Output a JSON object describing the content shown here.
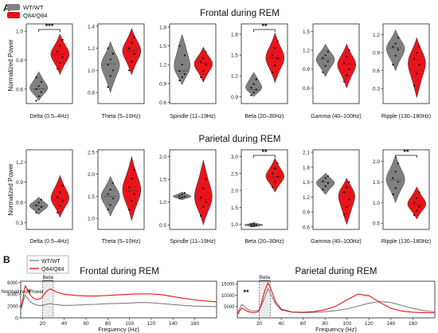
{
  "figure": {
    "panel_labels": [
      "A",
      "B"
    ],
    "legend": [
      {
        "label": "WT/WT",
        "color": "#808080"
      },
      {
        "label": "Q84/Q84",
        "color": "#e8141b"
      }
    ],
    "section_titles": [
      "Frontal during REM",
      "Parietal during REM"
    ],
    "ylabel_violin": "Normalized Power",
    "colors": {
      "wt": "#808080",
      "q84": "#e8141b"
    }
  },
  "chart_data": [
    {
      "type": "violin",
      "section": "Frontal during REM",
      "ylabel": "Normalized Power",
      "series": [
        "WT/WT",
        "Q84/Q84"
      ],
      "panels": [
        {
          "xlabel": "Delta (0.5–4Hz)",
          "ylim": [
            0.5,
            1.05
          ],
          "ticks": [
            "0.6",
            "0.8",
            "1.0"
          ],
          "tick_values": [
            0.6,
            0.8,
            1.0
          ],
          "wt": {
            "lo": 0.52,
            "hi": 0.72,
            "median": 0.6,
            "points": [
              0.52,
              0.55,
              0.58,
              0.6,
              0.62,
              0.65,
              0.68
            ]
          },
          "q84": {
            "lo": 0.7,
            "hi": 0.98,
            "median": 0.84,
            "points": [
              0.74,
              0.78,
              0.82,
              0.86,
              0.9,
              0.94
            ]
          },
          "sig": "***"
        },
        {
          "xlabel": "Theta (5–10Hz)",
          "ylim": [
            0.7,
            1.42
          ],
          "ticks": [
            "0.8",
            "1.0",
            "1.2",
            "1.4"
          ],
          "tick_values": [
            0.8,
            1.0,
            1.2,
            1.4
          ],
          "wt": {
            "lo": 0.8,
            "hi": 1.26,
            "median": 1.06,
            "points": [
              0.85,
              0.95,
              1.0,
              1.05,
              1.1,
              1.15,
              1.2
            ]
          },
          "q84": {
            "lo": 0.96,
            "hi": 1.38,
            "median": 1.18,
            "points": [
              1.0,
              1.08,
              1.15,
              1.2,
              1.25,
              1.3
            ]
          },
          "sig": ""
        },
        {
          "xlabel": "Spindle (11–19Hz)",
          "ylim": [
            0.58,
            1.85
          ],
          "ticks": [
            "0.6",
            "0.9",
            "1.2",
            "1.5",
            "1.8"
          ],
          "tick_values": [
            0.6,
            0.9,
            1.2,
            1.5,
            1.8
          ],
          "wt": {
            "lo": 0.88,
            "hi": 1.68,
            "median": 1.1,
            "points": [
              0.95,
              1.0,
              1.05,
              1.1,
              1.2,
              1.35,
              1.5
            ]
          },
          "q84": {
            "lo": 0.92,
            "hi": 1.48,
            "median": 1.22,
            "points": [
              1.0,
              1.1,
              1.2,
              1.25,
              1.3,
              1.4
            ]
          },
          "sig": ""
        },
        {
          "xlabel": "Beta (20–30Hz)",
          "ylim": [
            0.8,
            1.95
          ],
          "ticks": [
            "0.9",
            "1.2",
            "1.5",
            "1.8"
          ],
          "tick_values": [
            0.9,
            1.2,
            1.5,
            1.8
          ],
          "wt": {
            "lo": 0.9,
            "hi": 1.25,
            "median": 1.0,
            "points": [
              0.92,
              0.96,
              1.0,
              1.03,
              1.08,
              1.15
            ]
          },
          "q84": {
            "lo": 1.1,
            "hi": 1.82,
            "median": 1.46,
            "points": [
              1.25,
              1.35,
              1.45,
              1.5,
              1.6,
              1.7
            ]
          },
          "sig": "**"
        },
        {
          "xlabel": "Gamma (40–100Hz)",
          "ylim": [
            0.35,
            1.62
          ],
          "ticks": [
            "0.6",
            "0.9",
            "1.2",
            "1.5"
          ],
          "tick_values": [
            0.6,
            0.9,
            1.2,
            1.5
          ],
          "wt": {
            "lo": 0.78,
            "hi": 1.3,
            "median": 1.06,
            "points": [
              0.85,
              0.95,
              1.02,
              1.08,
              1.12,
              1.18
            ]
          },
          "q84": {
            "lo": 0.6,
            "hi": 1.3,
            "median": 0.98,
            "points": [
              0.7,
              0.8,
              0.9,
              1.0,
              1.1,
              1.2
            ]
          },
          "sig": ""
        },
        {
          "xlabel": "Ripple (130–180Hz)",
          "ylim": [
            0.05,
            1.38
          ],
          "ticks": [
            "0.3",
            "0.6",
            "0.9",
            "1.2"
          ],
          "tick_values": [
            0.3,
            0.6,
            0.9,
            1.2
          ],
          "wt": {
            "lo": 0.6,
            "hi": 1.28,
            "median": 0.98,
            "points": [
              0.7,
              0.85,
              0.95,
              1.0,
              1.05,
              1.15
            ]
          },
          "q84": {
            "lo": 0.15,
            "hi": 1.15,
            "median": 0.78,
            "points": [
              0.35,
              0.55,
              0.7,
              0.8,
              0.9,
              1.0
            ]
          },
          "sig": ""
        }
      ]
    },
    {
      "type": "violin",
      "section": "Parietal during REM",
      "ylabel": "Normalized Power",
      "series": [
        "WT/WT",
        "Q84/Q84"
      ],
      "panels": [
        {
          "xlabel": "Delta (0.5–4Hz)",
          "ylim": [
            0.2,
            1.38
          ],
          "ticks": [
            "0.3",
            "0.6",
            "0.9",
            "1.2"
          ],
          "tick_values": [
            0.3,
            0.6,
            0.9,
            1.2
          ],
          "wt": {
            "lo": 0.42,
            "hi": 0.68,
            "median": 0.55,
            "points": [
              0.45,
              0.5,
              0.53,
              0.56,
              0.6,
              0.64
            ]
          },
          "q84": {
            "lo": 0.38,
            "hi": 1.0,
            "median": 0.65,
            "points": [
              0.45,
              0.55,
              0.62,
              0.68,
              0.75,
              0.85
            ]
          },
          "sig": ""
        },
        {
          "xlabel": "Theta (5–10Hz)",
          "ylim": [
            0.75,
            2.55
          ],
          "ticks": [
            "1.0",
            "1.5",
            "2.0",
            "2.5"
          ],
          "tick_values": [
            1.0,
            1.5,
            2.0,
            2.5
          ],
          "wt": {
            "lo": 1.05,
            "hi": 1.95,
            "median": 1.5,
            "points": [
              1.2,
              1.3,
              1.45,
              1.55,
              1.65,
              1.8
            ]
          },
          "q84": {
            "lo": 0.95,
            "hi": 2.4,
            "median": 1.62,
            "points": [
              1.2,
              1.4,
              1.55,
              1.7,
              1.9,
              2.1
            ]
          },
          "sig": ""
        },
        {
          "xlabel": "Spindle (11–19Hz)",
          "ylim": [
            0.4,
            2.15
          ],
          "ticks": [
            "0.5",
            "1.0",
            "1.5",
            "2.0"
          ],
          "tick_values": [
            0.5,
            1.0,
            1.5,
            2.0
          ],
          "wt": {
            "lo": 1.05,
            "hi": 1.22,
            "median": 1.12,
            "points": [
              1.08,
              1.1,
              1.12,
              1.14,
              1.17,
              1.2
            ]
          },
          "q84": {
            "lo": 0.5,
            "hi": 1.92,
            "median": 1.05,
            "points": [
              0.7,
              0.9,
              1.0,
              1.1,
              1.3,
              1.5
            ]
          },
          "sig": ""
        },
        {
          "xlabel": "Beta (20–30Hz)",
          "ylim": [
            0.85,
            3.2
          ],
          "ticks": [
            "1.0",
            "1.5",
            "2.0",
            "2.5",
            "3.0"
          ],
          "tick_values": [
            1.0,
            1.5,
            2.0,
            2.5,
            3.0
          ],
          "wt": {
            "lo": 0.92,
            "hi": 1.05,
            "median": 0.98,
            "points": [
              0.94,
              0.96,
              0.98,
              1.0,
              1.02
            ]
          },
          "q84": {
            "lo": 1.95,
            "hi": 2.95,
            "median": 2.4,
            "points": [
              2.1,
              2.25,
              2.4,
              2.5,
              2.65,
              2.8
            ]
          },
          "sig": "**"
        },
        {
          "xlabel": "Gamma (40–100Hz)",
          "ylim": [
            0.55,
            2.15
          ],
          "ticks": [
            "0.6",
            "0.9",
            "1.2",
            "1.5",
            "1.8",
            "2.1"
          ],
          "tick_values": [
            0.6,
            0.9,
            1.2,
            1.5,
            1.8,
            2.1
          ],
          "wt": {
            "lo": 1.25,
            "hi": 1.68,
            "median": 1.5,
            "points": [
              1.35,
              1.42,
              1.48,
              1.52,
              1.58,
              1.62
            ]
          },
          "q84": {
            "lo": 0.65,
            "hi": 1.58,
            "median": 1.3,
            "points": [
              0.85,
              1.0,
              1.15,
              1.3,
              1.4,
              1.5
            ]
          },
          "sig": ""
        },
        {
          "xlabel": "Ripple (130–180Hz)",
          "ylim": [
            0.35,
            2.28
          ],
          "ticks": [
            "0.5",
            "1.0",
            "1.5",
            "2.0"
          ],
          "tick_values": [
            0.5,
            1.0,
            1.5,
            2.0
          ],
          "wt": {
            "lo": 1.0,
            "hi": 2.15,
            "median": 1.55,
            "points": [
              1.2,
              1.35,
              1.5,
              1.6,
              1.75,
              1.95
            ]
          },
          "q84": {
            "lo": 0.6,
            "hi": 1.38,
            "median": 0.95,
            "points": [
              0.7,
              0.8,
              0.9,
              1.0,
              1.1,
              1.25
            ]
          },
          "sig": "**"
        }
      ]
    },
    {
      "type": "line",
      "title": "Frontal during REM",
      "xlabel": "Frequency (Hz)",
      "ylabel": "Normalized Power",
      "xlim": [
        0,
        180
      ],
      "xticks": [
        "20",
        "40",
        "60",
        "80",
        "100",
        "120",
        "140",
        "160"
      ],
      "xtick_values": [
        20,
        40,
        60,
        80,
        100,
        120,
        140,
        160
      ],
      "ylim": [
        0,
        6200
      ],
      "yticks": [
        "0",
        "2000",
        "4000",
        "6000"
      ],
      "ytick_values": [
        0,
        2000,
        4000,
        6000
      ],
      "band_label": "Beta",
      "band_range": [
        20,
        30
      ],
      "star": "*",
      "star_x": 8,
      "series": [
        {
          "name": "WT/WT",
          "color": "#808080",
          "x": [
            0.5,
            2,
            4,
            6,
            8,
            10,
            12,
            15,
            18,
            20,
            22,
            25,
            28,
            30,
            35,
            40,
            50,
            60,
            70,
            80,
            90,
            100,
            110,
            120,
            130,
            140,
            150,
            160,
            170,
            180
          ],
          "y": [
            1500,
            2600,
            3900,
            3400,
            2900,
            2600,
            2350,
            2150,
            2100,
            2100,
            2200,
            2350,
            2400,
            2300,
            2200,
            2100,
            2150,
            2250,
            2300,
            2400,
            2450,
            2500,
            2600,
            2550,
            2400,
            2250,
            2100,
            2000,
            1950,
            1900
          ]
        },
        {
          "name": "Q84/Q84",
          "color": "#e8141b",
          "x": [
            0.5,
            2,
            4,
            6,
            8,
            10,
            12,
            15,
            18,
            20,
            22,
            25,
            28,
            30,
            35,
            40,
            50,
            60,
            70,
            80,
            90,
            100,
            110,
            120,
            130,
            140,
            150,
            160,
            170,
            180
          ],
          "y": [
            1800,
            3200,
            5400,
            4900,
            4100,
            3600,
            3300,
            3100,
            3250,
            3600,
            4100,
            4700,
            4900,
            4600,
            4250,
            4000,
            3800,
            3700,
            3700,
            3800,
            3900,
            4000,
            4050,
            4050,
            3900,
            3600,
            3300,
            3050,
            2850,
            2700
          ]
        }
      ]
    },
    {
      "type": "line",
      "title": "Parietal during REM",
      "xlabel": "Frequency (Hz)",
      "ylabel": "Normalized Power",
      "xlim": [
        0,
        180
      ],
      "xticks": [
        "20",
        "40",
        "60",
        "80",
        "100",
        "120",
        "140",
        "160"
      ],
      "xtick_values": [
        20,
        40,
        60,
        80,
        100,
        120,
        140,
        160
      ],
      "ylim": [
        0,
        16200
      ],
      "yticks": [
        "5000",
        "10000",
        "15000"
      ],
      "ytick_values": [
        5000,
        10000,
        15000
      ],
      "band_label": "Beta",
      "band_range": [
        20,
        30
      ],
      "star": "**",
      "star_x": 8,
      "series": [
        {
          "name": "WT/WT",
          "color": "#808080",
          "x": [
            0.5,
            2,
            4,
            6,
            8,
            10,
            12,
            15,
            18,
            20,
            22,
            25,
            28,
            30,
            35,
            40,
            50,
            60,
            70,
            80,
            90,
            100,
            110,
            120,
            130,
            140,
            150,
            160,
            170,
            180
          ],
          "y": [
            2200,
            4000,
            6000,
            5200,
            4300,
            3700,
            3300,
            3000,
            3100,
            3600,
            5500,
            9000,
            13000,
            11000,
            6000,
            3500,
            2500,
            2300,
            2400,
            2700,
            3200,
            4000,
            5200,
            6500,
            7200,
            6800,
            5500,
            4200,
            3200,
            2600
          ]
        },
        {
          "name": "Q84/Q84",
          "color": "#e8141b",
          "x": [
            0.5,
            2,
            4,
            6,
            8,
            10,
            12,
            15,
            18,
            20,
            22,
            25,
            28,
            30,
            35,
            40,
            50,
            60,
            70,
            80,
            90,
            100,
            110,
            120,
            130,
            140,
            150,
            160,
            170,
            180
          ],
          "y": [
            1600,
            3000,
            4300,
            3800,
            3200,
            2800,
            2500,
            2300,
            2500,
            3200,
            6500,
            12000,
            15500,
            13500,
            7000,
            3800,
            2600,
            2500,
            2800,
            3600,
            5200,
            8000,
            10500,
            9800,
            6800,
            4200,
            3000,
            2500,
            2300,
            2200
          ]
        }
      ]
    }
  ]
}
